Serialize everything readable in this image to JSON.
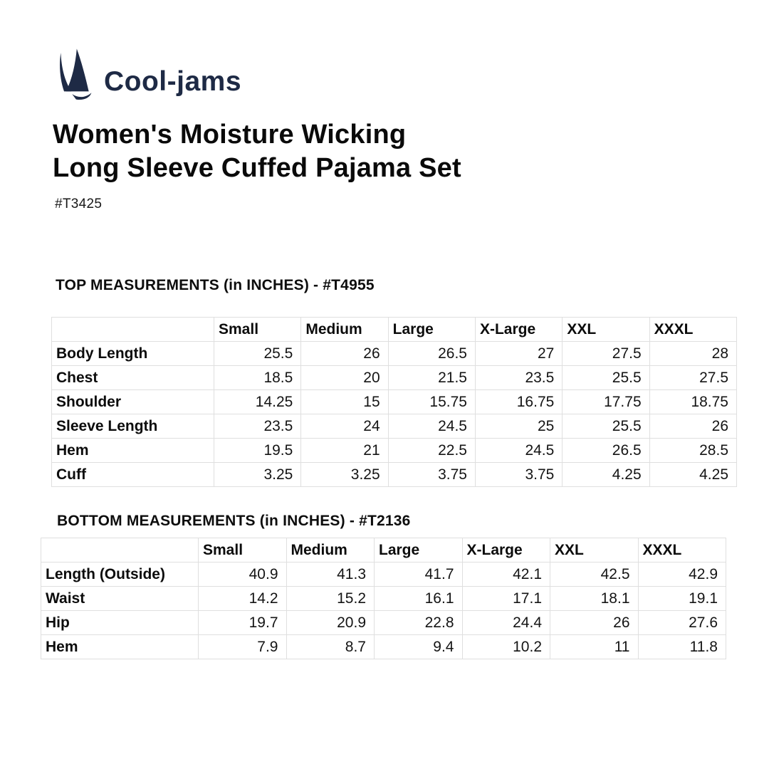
{
  "colors": {
    "brand_navy": "#1e2a45"
  },
  "brand": {
    "name": "Cool-jams"
  },
  "product": {
    "title_line1": "Women's Moisture Wicking",
    "title_line2": "Long Sleeve Cuffed Pajama Set",
    "sku": "#T3425"
  },
  "tables": [
    {
      "title": "TOP MEASUREMENTS (in INCHES) - #T4955",
      "columns": [
        "Small",
        "Medium",
        "Large",
        "X-Large",
        "XXL",
        "XXXL"
      ],
      "rows": [
        {
          "label": "Body Length",
          "values": [
            "25.5",
            "26",
            "26.5",
            "27",
            "27.5",
            "28"
          ]
        },
        {
          "label": "Chest",
          "values": [
            "18.5",
            "20",
            "21.5",
            "23.5",
            "25.5",
            "27.5"
          ]
        },
        {
          "label": "Shoulder",
          "values": [
            "14.25",
            "15",
            "15.75",
            "16.75",
            "17.75",
            "18.75"
          ]
        },
        {
          "label": "Sleeve Length",
          "values": [
            "23.5",
            "24",
            "24.5",
            "25",
            "25.5",
            "26"
          ]
        },
        {
          "label": "Hem",
          "values": [
            "19.5",
            "21",
            "22.5",
            "24.5",
            "26.5",
            "28.5"
          ]
        },
        {
          "label": "Cuff",
          "values": [
            "3.25",
            "3.25",
            "3.75",
            "3.75",
            "4.25",
            "4.25"
          ]
        }
      ]
    },
    {
      "title": "BOTTOM MEASUREMENTS (in INCHES) - #T2136",
      "columns": [
        "Small",
        "Medium",
        "Large",
        "X-Large",
        "XXL",
        "XXXL"
      ],
      "rows": [
        {
          "label": "Length (Outside)",
          "values": [
            "40.9",
            "41.3",
            "41.7",
            "42.1",
            "42.5",
            "42.9"
          ]
        },
        {
          "label": "Waist",
          "values": [
            "14.2",
            "15.2",
            "16.1",
            "17.1",
            "18.1",
            "19.1"
          ]
        },
        {
          "label": "Hip",
          "values": [
            "19.7",
            "20.9",
            "22.8",
            "24.4",
            "26",
            "27.6"
          ]
        },
        {
          "label": "Hem",
          "values": [
            "7.9",
            "8.7",
            "9.4",
            "10.2",
            "11",
            "11.8"
          ]
        }
      ]
    }
  ]
}
